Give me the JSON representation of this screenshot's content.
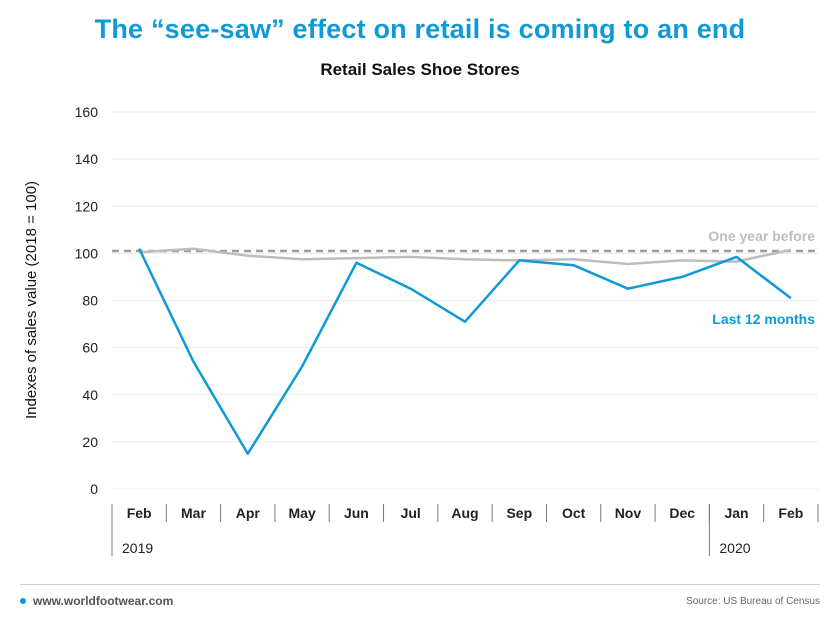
{
  "headline": "The “see-saw” effect on retail is coming to an end",
  "footer": {
    "website": "www.worldfootwear.com",
    "source": "Source: US Bureau of Census"
  },
  "colors": {
    "accent": "#0f9ad7",
    "prior_year": "#bdbdbd",
    "baseline_dashed": "#9e9e9e"
  },
  "chart_data": {
    "type": "line",
    "title": "Retail Sales Shoe Stores",
    "ylabel": "Indexes of sales value (2018 = 100)",
    "xlabel": "",
    "ylim": [
      0,
      160
    ],
    "yticks": [
      0,
      20,
      40,
      60,
      80,
      100,
      120,
      140,
      160
    ],
    "grid": true,
    "categories": [
      "Feb",
      "Mar",
      "Apr",
      "May",
      "Jun",
      "Jul",
      "Aug",
      "Sep",
      "Oct",
      "Nov",
      "Dec",
      "Jan",
      "Feb"
    ],
    "year_groups": [
      {
        "label": "2019",
        "start": 0,
        "end": 10
      },
      {
        "label": "2020",
        "start": 11,
        "end": 12
      }
    ],
    "series": [
      {
        "name": "Last 12 months",
        "color": "#0f9ad7",
        "values": [
          102,
          54,
          15,
          52,
          96,
          85,
          71,
          97,
          95,
          85,
          90,
          98.5,
          81
        ]
      },
      {
        "name": "One year before",
        "color": "#bdbdbd",
        "values": [
          100.5,
          102,
          99,
          97.5,
          98,
          98.5,
          97.5,
          97,
          97.5,
          95.5,
          97,
          96.5,
          101.5
        ]
      }
    ],
    "reference_line": {
      "value": 101,
      "style": "dashed"
    }
  }
}
